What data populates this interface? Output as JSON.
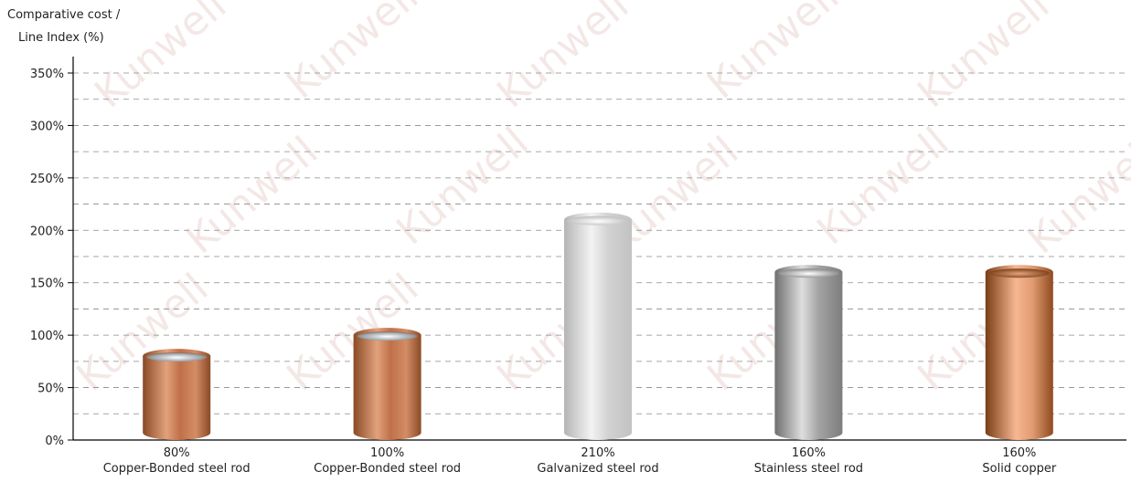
{
  "chart_data": {
    "type": "bar",
    "ylabel": [
      "Comparative cost /",
      "Line Index (%)"
    ],
    "y_ticks": [
      "0%",
      "50%",
      "100%",
      "150%",
      "200%",
      "250%",
      "300%",
      "350%"
    ],
    "ylim": [
      0,
      350
    ],
    "grid": true,
    "categories": [
      "Copper-Bonded steel rod",
      "Copper-Bonded steel rod",
      "Galvanized steel rod",
      "Stainless steel rod",
      "Solid copper"
    ],
    "values": [
      80,
      100,
      210,
      160,
      160
    ],
    "value_labels": [
      "80%",
      "100%",
      "210%",
      "160%",
      "160%"
    ],
    "bar_styles": [
      "copper",
      "copper",
      "galvanized",
      "stainless",
      "solid-copper"
    ]
  },
  "watermark_text": "Kunwell",
  "colors": {
    "copper": [
      "#8a4a26",
      "#d79a74",
      "#a55a33"
    ],
    "galvanized": [
      "#b8b8b8",
      "#f0f0f0",
      "#c9c9c9"
    ],
    "stainless": [
      "#6f6f6f",
      "#d9d9d9",
      "#8a8a8a"
    ],
    "solid-copper": [
      "#7a3e16",
      "#f0b08b",
      "#9a5226"
    ]
  }
}
